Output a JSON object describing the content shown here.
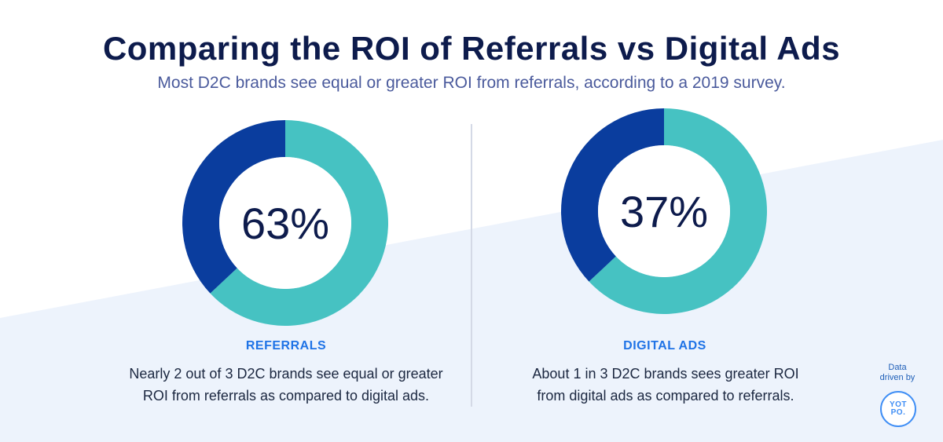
{
  "header": {
    "title": "Comparing the ROI of Referrals vs Digital Ads",
    "subtitle": "Most D2C brands see equal or greater ROI from referrals, according to a 2019 survey."
  },
  "colors": {
    "teal": "#46c2c2",
    "navy": "#0a3d9e",
    "title": "#0d1b4c",
    "accent_label": "#1f73e6",
    "background_shape": "#edf3fc"
  },
  "chart_data": [
    {
      "type": "pie",
      "title": "REFERRALS",
      "center_label": "63%",
      "description": "Nearly 2 out of 3 D2C brands see equal or greater ROI from referrals as compared to digital ads.",
      "description_lines": [
        "Nearly 2 out of 3 D2C brands see equal or greater",
        "ROI from referrals as compared to digital ads."
      ],
      "slices": [
        {
          "label": "",
          "value": 63,
          "color": "#46c2c2"
        },
        {
          "label": "",
          "value": 37,
          "color": "#0a3d9e"
        }
      ]
    },
    {
      "type": "pie",
      "title": "DIGITAL ADS",
      "center_label": "37%",
      "description": "About 1 in 3 D2C brands sees greater ROI from digital ads as compared to referrals.",
      "description_lines": [
        "About 1 in 3 D2C brands sees greater ROI",
        "from digital ads as compared to referrals."
      ],
      "slices": [
        {
          "label": "",
          "value": 63,
          "color": "#46c2c2"
        },
        {
          "label": "",
          "value": 37,
          "color": "#0a3d9e"
        }
      ]
    }
  ],
  "credit": {
    "line1": "Data",
    "line2": "driven by",
    "logo_top": "YOT",
    "logo_bottom": "PO."
  }
}
